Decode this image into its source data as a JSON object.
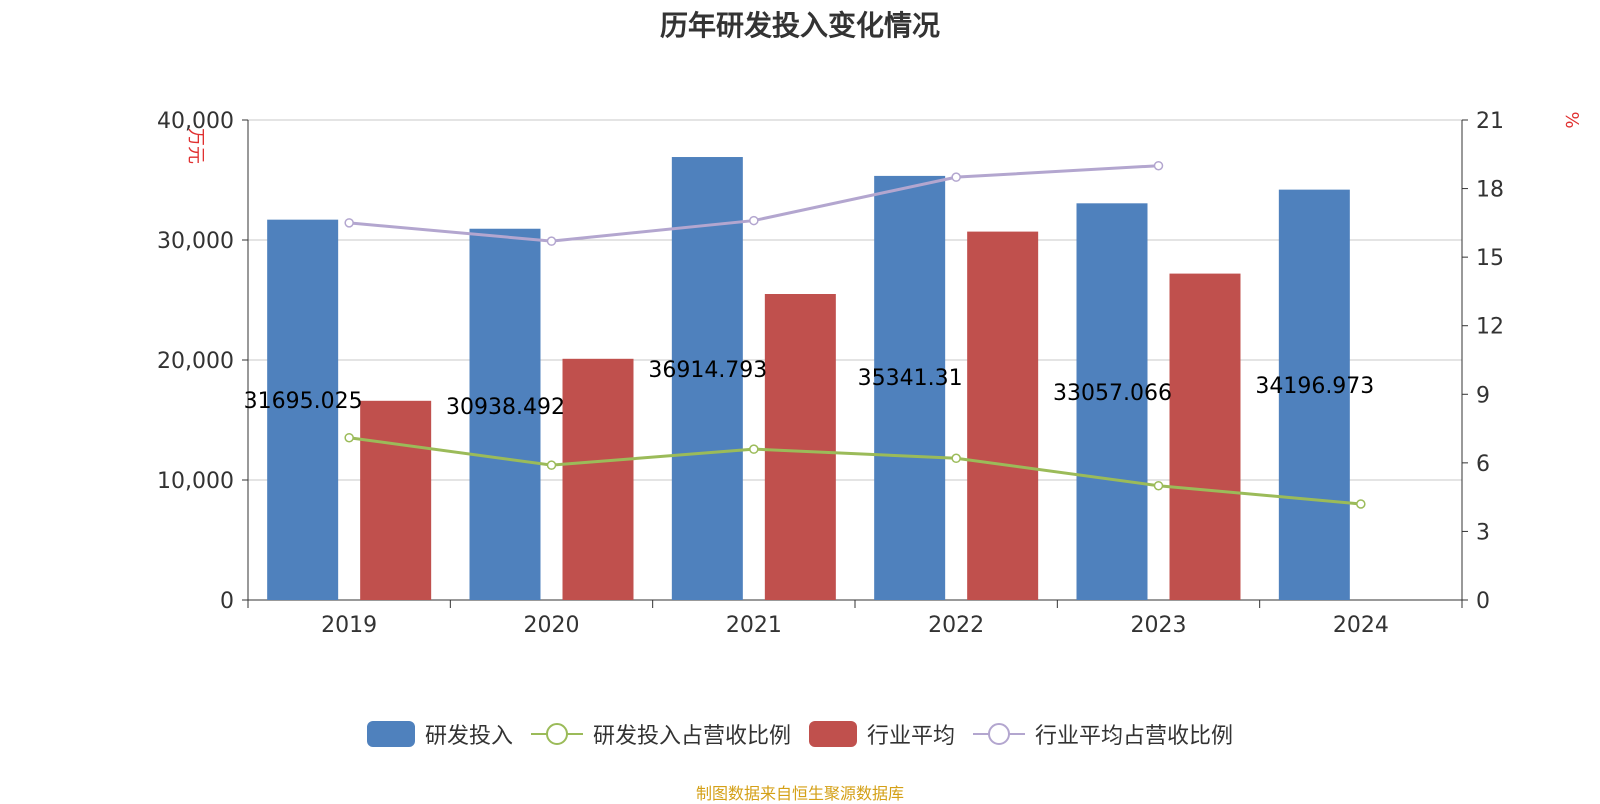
{
  "title": "历年研发投入变化情况",
  "source_note": "制图数据来自恒生聚源数据库",
  "colors": {
    "rd_bar": "#4f81bd",
    "industry_bar": "#c0504d",
    "rd_ratio_line": "#9bbb59",
    "industry_ratio_line": "#b3a6cf",
    "axis_unit": "#e03030",
    "grid": "#c8c8c8",
    "text": "#333333"
  },
  "chart_data": {
    "type": "bar",
    "categories": [
      "2019",
      "2020",
      "2021",
      "2022",
      "2023",
      "2024"
    ],
    "y_left": {
      "label": "万元",
      "ylim": [
        0,
        40000
      ],
      "ticks": [
        "0",
        "10,000",
        "20,000",
        "30,000",
        "40,000"
      ],
      "tick_values": [
        0,
        10000,
        20000,
        30000,
        40000
      ]
    },
    "y_right": {
      "label": "%",
      "ylim": [
        0,
        21
      ],
      "ticks": [
        "0",
        "3",
        "6",
        "9",
        "12",
        "15",
        "18",
        "21"
      ],
      "tick_values": [
        0,
        3,
        6,
        9,
        12,
        15,
        18,
        21
      ]
    },
    "grid": true,
    "legend_position": "bottom",
    "series": [
      {
        "name": "研发投入",
        "type": "bar",
        "axis": "left",
        "values": [
          31695.025,
          30938.492,
          36914.793,
          35341.31,
          33057.066,
          34196.973
        ],
        "labels": [
          "31695.025",
          "30938.492",
          "36914.793",
          "35341.31",
          "33057.066",
          "34196.973"
        ]
      },
      {
        "name": "研发投入占营收比例",
        "type": "line",
        "axis": "right",
        "values": [
          7.1,
          5.9,
          6.6,
          6.2,
          5.0,
          4.2
        ]
      },
      {
        "name": "行业平均",
        "type": "bar",
        "axis": "left",
        "values": [
          16600,
          20100,
          25500,
          30700,
          27200,
          null
        ]
      },
      {
        "name": "行业平均占营收比例",
        "type": "line",
        "axis": "right",
        "values": [
          16.5,
          15.7,
          16.6,
          18.5,
          19.0,
          null
        ]
      }
    ]
  }
}
